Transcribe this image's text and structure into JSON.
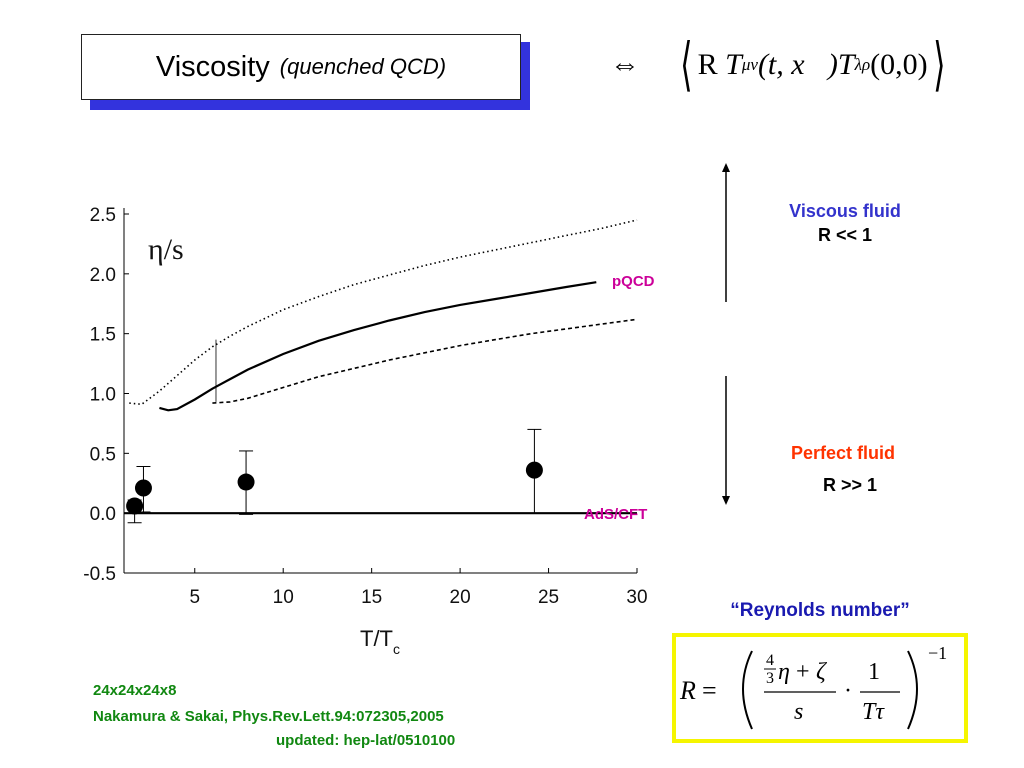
{
  "title": {
    "main": "Viscosity",
    "sub": "(quenched QCD)"
  },
  "equivalence_symbol": "⇔",
  "correlator": {
    "R": "R",
    "T1": "T",
    "sub1": "μν",
    "args": "(t, x⃗)",
    "T2": "T",
    "sub2": "λρ",
    "args2": "(0,0)"
  },
  "viscous": {
    "label": "Viscous fluid",
    "cond": "R << 1"
  },
  "perfect": {
    "label": "Perfect fluid",
    "cond": "R >> 1"
  },
  "reynolds": {
    "title": "“Reynolds number”"
  },
  "reference": {
    "lattice": "24x24x24x8",
    "paper": "Nakamura & Sakai, Phys.Rev.Lett.94:072305,2005",
    "update": "updated: hep-lat/0510100"
  },
  "colors": {
    "title_shadow": "#3333dd",
    "viscous": "#3333cc",
    "perfect": "#ff3300",
    "label": "#cc0099",
    "reference": "#118811",
    "box": "#f5f500"
  },
  "chart_data": {
    "type": "scatter",
    "title": "",
    "ylabel_inside": "η/s",
    "xlabel": "T/T",
    "xlabel_sub": "c",
    "xlim": [
      1,
      30
    ],
    "ylim": [
      -0.5,
      2.5
    ],
    "xticks": [
      5,
      10,
      15,
      20,
      25,
      30
    ],
    "yticks": [
      -0.5,
      0.0,
      0.5,
      1.0,
      1.5,
      2.0,
      2.5
    ],
    "xtick_labels": [
      "5",
      "10",
      "15",
      "20",
      "25",
      "30"
    ],
    "ytick_labels": [
      "-0.5",
      "0.0",
      "0.5",
      "1.0",
      "1.5",
      "2.0",
      "2.5"
    ],
    "series": [
      {
        "name": "pQCD",
        "style": "solid",
        "x": [
          3,
          3.5,
          4,
          5,
          6,
          7,
          8,
          10,
          12,
          14,
          16,
          18,
          20,
          22,
          24,
          26,
          27.7
        ],
        "y": [
          0.88,
          0.86,
          0.87,
          0.95,
          1.04,
          1.12,
          1.2,
          1.33,
          1.44,
          1.53,
          1.61,
          1.68,
          1.74,
          1.79,
          1.84,
          1.89,
          1.93
        ]
      },
      {
        "style": "dotted",
        "x": [
          1.3,
          2,
          3,
          4,
          5,
          6,
          7,
          8,
          10,
          12,
          14,
          16,
          18,
          20,
          22,
          24,
          26,
          28,
          30
        ],
        "y": [
          0.92,
          0.91,
          1.02,
          1.15,
          1.28,
          1.39,
          1.48,
          1.56,
          1.7,
          1.81,
          1.91,
          1.99,
          2.07,
          2.14,
          2.2,
          2.26,
          2.32,
          2.38,
          2.45
        ]
      },
      {
        "style": "dashed",
        "x": [
          6,
          7,
          8,
          10,
          12,
          14,
          16,
          18,
          20,
          22,
          24,
          26,
          28,
          30
        ],
        "y": [
          0.92,
          0.93,
          0.96,
          1.05,
          1.14,
          1.21,
          1.28,
          1.34,
          1.4,
          1.45,
          1.5,
          1.54,
          1.58,
          1.62
        ]
      },
      {
        "name": "AdS/CFT",
        "style": "solid",
        "x": [
          1,
          30
        ],
        "y": [
          0.0,
          0.0
        ]
      }
    ],
    "points": {
      "x": [
        1.6,
        2.1,
        7.9,
        24.2
      ],
      "y": [
        0.06,
        0.21,
        0.26,
        0.36
      ],
      "err_low": [
        0.14,
        0.2,
        0.27,
        0.36
      ],
      "err_high": [
        0.05,
        0.18,
        0.26,
        0.34
      ]
    },
    "annotations": [
      "pQCD",
      "AdS/CFT"
    ]
  }
}
